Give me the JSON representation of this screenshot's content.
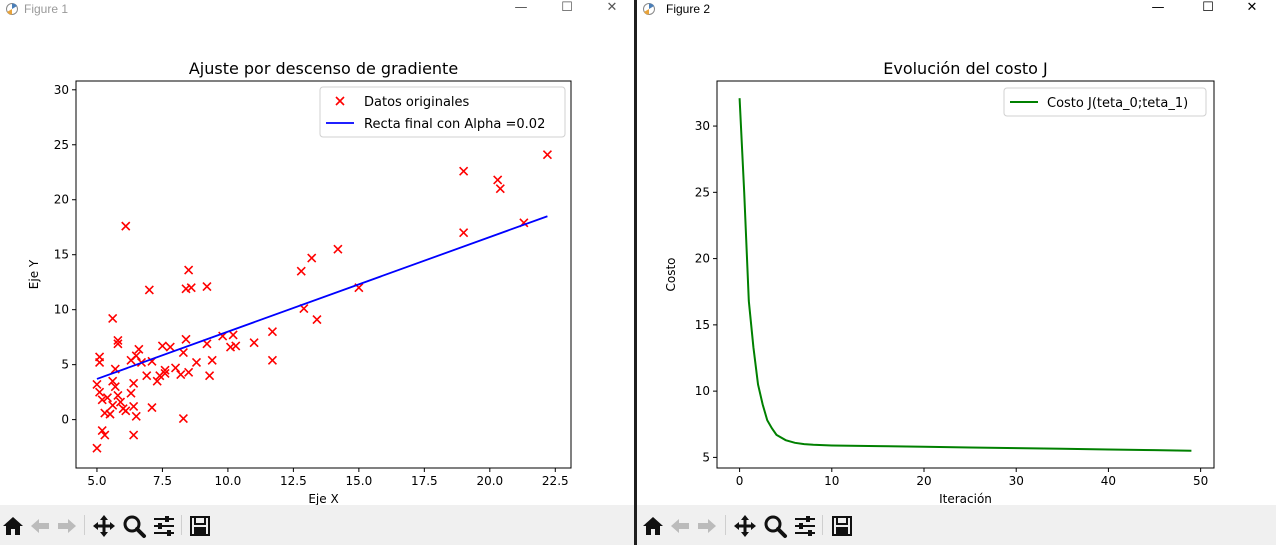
{
  "windows": [
    {
      "title": "Figure 1",
      "active": false
    },
    {
      "title": "Figure 2",
      "active": true
    }
  ],
  "window_controls": {
    "minimize": "—",
    "maximize": "☐",
    "close": "✕"
  },
  "toolbar_items": [
    "home-icon",
    "back-icon",
    "forward-icon",
    "pan-icon",
    "zoom-icon",
    "configure-subplots-icon",
    "save-icon"
  ],
  "chart_data": [
    {
      "type": "scatter",
      "title": "Ajuste por descenso de gradiente",
      "xlabel": "Eje X",
      "ylabel": "Eje Y",
      "xlim": [
        4.2,
        23.1
      ],
      "ylim": [
        -4.4,
        30.8
      ],
      "xticks": [
        5.0,
        7.5,
        10.0,
        12.5,
        15.0,
        17.5,
        20.0,
        22.5
      ],
      "xtick_labels": [
        "5.0",
        "7.5",
        "10.0",
        "12.5",
        "15.0",
        "17.5",
        "20.0",
        "22.5"
      ],
      "yticks": [
        0,
        5,
        10,
        15,
        20,
        25,
        30
      ],
      "ytick_labels": [
        "0",
        "5",
        "10",
        "15",
        "20",
        "25",
        "30"
      ],
      "grid": false,
      "legend": "top-right",
      "series": [
        {
          "name": "Datos originales",
          "kind": "scatter",
          "marker": "x",
          "color": "#ff0000",
          "points": [
            [
              5.1,
              5.7
            ],
            [
              5.1,
              5.2
            ],
            [
              5.0,
              3.2
            ],
            [
              5.1,
              2.5
            ],
            [
              5.2,
              1.8
            ],
            [
              5.3,
              0.6
            ],
            [
              5.2,
              -1.0
            ],
            [
              5.3,
              -1.4
            ],
            [
              5.0,
              -2.6
            ],
            [
              5.4,
              2.0
            ],
            [
              5.6,
              3.5
            ],
            [
              5.7,
              4.6
            ],
            [
              5.6,
              9.2
            ],
            [
              5.8,
              7.2
            ],
            [
              5.8,
              6.9
            ],
            [
              5.7,
              3.0
            ],
            [
              5.6,
              1.3
            ],
            [
              5.5,
              0.5
            ],
            [
              5.8,
              2.2
            ],
            [
              5.9,
              1.6
            ],
            [
              6.0,
              1.0
            ],
            [
              6.1,
              0.8
            ],
            [
              6.1,
              17.6
            ],
            [
              6.3,
              5.4
            ],
            [
              6.5,
              5.8
            ],
            [
              6.6,
              6.4
            ],
            [
              6.4,
              3.3
            ],
            [
              6.3,
              2.4
            ],
            [
              6.4,
              1.2
            ],
            [
              6.5,
              0.3
            ],
            [
              6.4,
              -1.4
            ],
            [
              6.7,
              5.2
            ],
            [
              6.9,
              4.0
            ],
            [
              7.0,
              11.8
            ],
            [
              7.1,
              5.3
            ],
            [
              7.1,
              1.1
            ],
            [
              7.3,
              3.5
            ],
            [
              7.4,
              4.0
            ],
            [
              7.5,
              6.7
            ],
            [
              7.6,
              4.5
            ],
            [
              7.6,
              4.2
            ],
            [
              7.8,
              6.6
            ],
            [
              8.0,
              4.7
            ],
            [
              8.2,
              4.1
            ],
            [
              8.3,
              6.1
            ],
            [
              8.4,
              7.3
            ],
            [
              8.5,
              13.6
            ],
            [
              8.4,
              11.9
            ],
            [
              8.6,
              12.0
            ],
            [
              8.5,
              4.3
            ],
            [
              8.3,
              0.1
            ],
            [
              8.8,
              5.2
            ],
            [
              9.2,
              12.1
            ],
            [
              9.2,
              6.9
            ],
            [
              9.4,
              5.4
            ],
            [
              9.3,
              4.0
            ],
            [
              9.8,
              7.6
            ],
            [
              10.1,
              6.6
            ],
            [
              10.2,
              7.7
            ],
            [
              10.3,
              6.7
            ],
            [
              11.0,
              7.0
            ],
            [
              11.7,
              8.0
            ],
            [
              11.7,
              5.4
            ],
            [
              12.8,
              13.5
            ],
            [
              12.9,
              10.1
            ],
            [
              13.2,
              14.7
            ],
            [
              13.4,
              9.1
            ],
            [
              14.2,
              15.5
            ],
            [
              15.0,
              12.0
            ],
            [
              19.0,
              22.6
            ],
            [
              19.0,
              17.0
            ],
            [
              20.3,
              21.8
            ],
            [
              20.4,
              21.0
            ],
            [
              21.3,
              17.9
            ],
            [
              22.2,
              24.1
            ]
          ]
        },
        {
          "name": "Recta final con Alpha =0.02",
          "kind": "line",
          "color": "#0000ff",
          "points": [
            [
              5.0,
              3.7
            ],
            [
              22.2,
              18.5
            ]
          ]
        }
      ]
    },
    {
      "type": "line",
      "title": "Evolución del costo J",
      "xlabel": "Iteración",
      "ylabel": "Costo",
      "xlim": [
        -2.45,
        51.45
      ],
      "ylim": [
        4.2,
        33.4
      ],
      "xticks": [
        0,
        10,
        20,
        30,
        40,
        50
      ],
      "xtick_labels": [
        "0",
        "10",
        "20",
        "30",
        "40",
        "50"
      ],
      "yticks": [
        5,
        10,
        15,
        20,
        25,
        30
      ],
      "ytick_labels": [
        "5",
        "10",
        "15",
        "20",
        "25",
        "30"
      ],
      "grid": false,
      "legend": "top-right",
      "series": [
        {
          "name": "Costo J(teta_0;teta_1)",
          "color": "#008000",
          "x": [
            0,
            0.5,
            1,
            1.5,
            2,
            2.5,
            3,
            3.5,
            4,
            5,
            6,
            7,
            8,
            10,
            15,
            20,
            25,
            30,
            35,
            40,
            45,
            49
          ],
          "y": [
            32.1,
            25.0,
            16.8,
            13.3,
            10.5,
            9.0,
            7.8,
            7.2,
            6.7,
            6.3,
            6.1,
            6.0,
            5.95,
            5.9,
            5.85,
            5.8,
            5.75,
            5.7,
            5.65,
            5.6,
            5.55,
            5.5
          ]
        }
      ]
    }
  ]
}
